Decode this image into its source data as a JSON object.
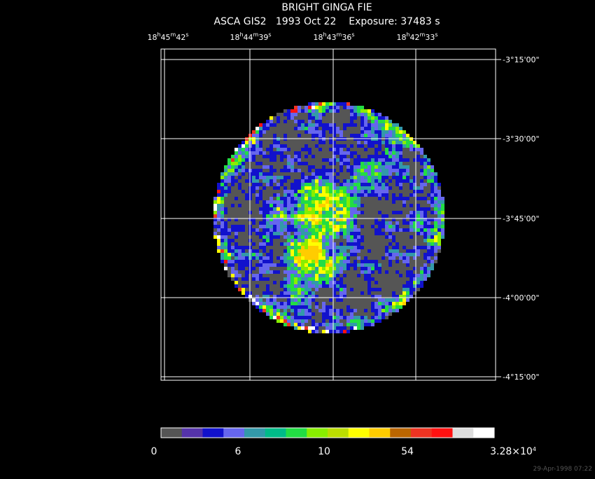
{
  "header": {
    "title": "BRIGHT GINGA FIE",
    "subtitle": "ASCA GIS2   1993 Oct 22    Exposure: 37483 s"
  },
  "ra_ticks": [
    [
      "18",
      "h",
      "45",
      "m",
      "42",
      "s"
    ],
    [
      "18",
      "h",
      "44",
      "m",
      "39",
      "s"
    ],
    [
      "18",
      "h",
      "43",
      "m",
      "36",
      "s"
    ],
    [
      "18",
      "h",
      "42",
      "m",
      "33",
      "s"
    ]
  ],
  "dec_ticks": [
    "-3°15'00\"",
    "-3°30'00\"",
    "-3°45'00\"",
    "-4°00'00\"",
    "-4°15'00\""
  ],
  "colorbar": {
    "colors": [
      "#555555",
      "#5533aa",
      "#1111cc",
      "#6666ee",
      "#3399aa",
      "#00bb88",
      "#22dd44",
      "#88ee00",
      "#bbdd00",
      "#ffff00",
      "#ffcc00",
      "#bb6600",
      "#ee3322",
      "#ff1111",
      "#dddddd",
      "#ffffff"
    ],
    "labels": [
      [
        "0"
      ],
      [
        "6"
      ],
      [
        "10"
      ],
      [
        "54"
      ],
      [
        "3.28×10",
        "4"
      ]
    ]
  },
  "timestamp": "29-Apr-1998 07:22"
}
